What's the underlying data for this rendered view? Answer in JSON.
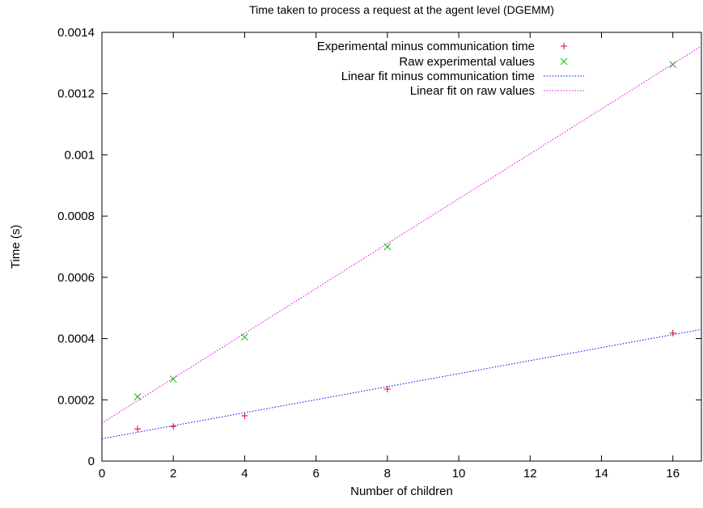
{
  "chart_data": {
    "type": "scatter",
    "title": "Time taken to process a request at the agent level (DGEMM)",
    "xlabel": "Number of children",
    "ylabel": "Time (s)",
    "xlim": [
      0,
      16.8
    ],
    "ylim": [
      0,
      0.0014
    ],
    "xticks": [
      0,
      2,
      4,
      6,
      8,
      10,
      12,
      14,
      16
    ],
    "xtick_labels": [
      "0",
      "2",
      "4",
      "6",
      "8",
      "10",
      "12",
      "14",
      "16"
    ],
    "yticks": [
      0,
      0.0002,
      0.0004,
      0.0006,
      0.0008,
      0.001,
      0.0012,
      0.0014
    ],
    "ytick_labels": [
      "0",
      "0.0002",
      "0.0004",
      "0.0006",
      "0.0008",
      "0.001",
      "0.0012",
      "0.0014"
    ],
    "grid": false,
    "legend_position": "top-right",
    "series": [
      {
        "name": "Experimental minus communication time",
        "kind": "points",
        "marker": "plus",
        "color": "#e0002a",
        "x": [
          1,
          2,
          4,
          8,
          16
        ],
        "y": [
          0.000105,
          0.000113,
          0.000148,
          0.000235,
          0.000418
        ]
      },
      {
        "name": "Raw experimental values",
        "kind": "points",
        "marker": "cross",
        "color": "#00c000",
        "x": [
          1,
          2,
          4,
          8,
          16
        ],
        "y": [
          0.00021,
          0.000268,
          0.000405,
          0.0007,
          0.001295
        ]
      },
      {
        "name": "Linear fit minus communication time",
        "kind": "line",
        "style": "dotted",
        "color": "#0000ff",
        "x": [
          0,
          16.8
        ],
        "y": [
          7.3e-05,
          0.00043
        ]
      },
      {
        "name": "Linear fit on raw values",
        "kind": "line",
        "style": "dotted",
        "color": "#e000e0",
        "x": [
          0,
          16.8
        ],
        "y": [
          0.000124,
          0.001355
        ]
      }
    ]
  }
}
